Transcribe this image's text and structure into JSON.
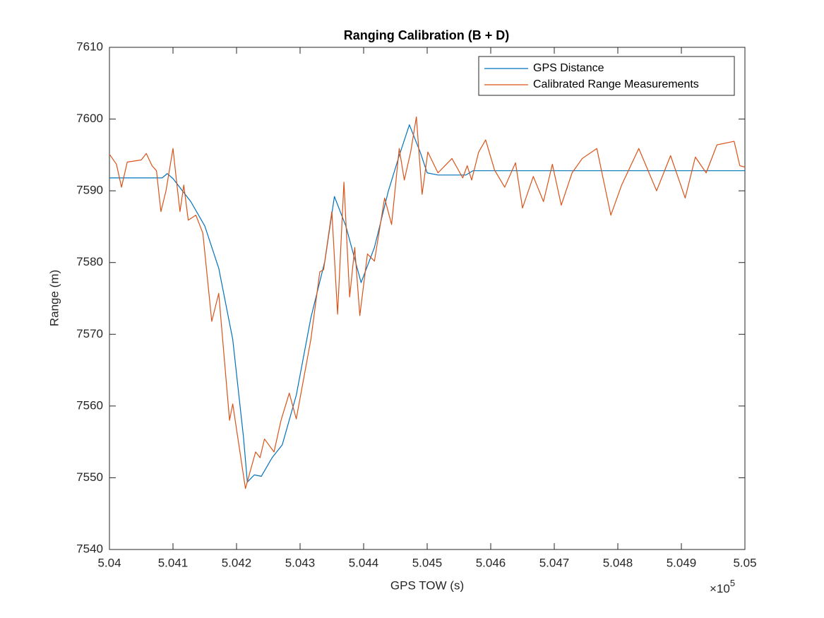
{
  "chart_data": {
    "type": "line",
    "title": "Ranging Calibration (B + D)",
    "xlabel": "GPS TOW (s)",
    "ylabel": "Range (m)",
    "x_multiplier": {
      "base": "×10",
      "exponent": "5"
    },
    "xlim": [
      504000,
      505000
    ],
    "ylim": [
      7540,
      7610
    ],
    "xticks": [
      {
        "value": 504000,
        "label": "5.04"
      },
      {
        "value": 504100,
        "label": "5.041"
      },
      {
        "value": 504200,
        "label": "5.042"
      },
      {
        "value": 504300,
        "label": "5.043"
      },
      {
        "value": 504400,
        "label": "5.044"
      },
      {
        "value": 504500,
        "label": "5.045"
      },
      {
        "value": 504600,
        "label": "5.046"
      },
      {
        "value": 504700,
        "label": "5.047"
      },
      {
        "value": 504800,
        "label": "5.048"
      },
      {
        "value": 504900,
        "label": "5.049"
      },
      {
        "value": 505000,
        "label": "5.05"
      }
    ],
    "yticks": [
      7540,
      7550,
      7560,
      7570,
      7580,
      7590,
      7600,
      7610
    ],
    "grid": false,
    "legend": "upper right",
    "series": [
      {
        "name": "GPS Distance",
        "color": "#0072bd",
        "x": [
          504000,
          504083,
          504091,
          504100,
          504128,
          504150,
          504172,
          504194,
          504211,
          504217,
          504228,
          504239,
          504256,
          504272,
          504294,
          504317,
          504339,
          504354,
          504372,
          504396,
          504417,
          504439,
          504456,
          504472,
          504489,
          504500,
          504517,
          504561,
          504572,
          505000
        ],
        "values": [
          7591.8,
          7591.8,
          7592.4,
          7591.7,
          7588.5,
          7585.1,
          7579.2,
          7569.3,
          7555.6,
          7549.4,
          7550.4,
          7550.2,
          7552.8,
          7554.6,
          7561.5,
          7572.3,
          7580.2,
          7589.2,
          7585.1,
          7577.2,
          7582.1,
          7590.0,
          7594.9,
          7599.2,
          7595.4,
          7592.5,
          7592.2,
          7592.2,
          7592.8,
          7592.8
        ]
      },
      {
        "name": "Calibrated Range Measurements",
        "color": "#d95319",
        "x": [
          504000,
          504011,
          504019,
          504028,
          504050,
          504058,
          504067,
          504074,
          504081,
          504089,
          504100,
          504106,
          504111,
          504117,
          504124,
          504136,
          504147,
          504161,
          504172,
          504189,
          504194,
          504214,
          504230,
          504237,
          504244,
          504259,
          504270,
          504283,
          504294,
          504317,
          504331,
          504337,
          504350,
          504359,
          504369,
          504378,
          504386,
          504394,
          504406,
          504417,
          504433,
          504444,
          504456,
          504464,
          504474,
          504483,
          504492,
          504501,
          504517,
          504539,
          504556,
          504563,
          504570,
          504581,
          504592,
          504606,
          504622,
          504639,
          504650,
          504667,
          504683,
          504697,
          504711,
          504728,
          504744,
          504767,
          504789,
          504806,
          504833,
          504861,
          504883,
          504906,
          504922,
          504939,
          504956,
          504983,
          504992,
          505000
        ],
        "values": [
          7595.1,
          7593.7,
          7590.5,
          7594.0,
          7594.3,
          7595.2,
          7593.5,
          7592.8,
          7587.1,
          7590.0,
          7595.9,
          7591.0,
          7587.1,
          7590.8,
          7585.9,
          7586.6,
          7584.1,
          7571.8,
          7575.7,
          7558.0,
          7560.3,
          7548.5,
          7553.6,
          7552.8,
          7555.4,
          7553.6,
          7558.0,
          7561.8,
          7558.2,
          7569.3,
          7578.7,
          7579.0,
          7587.1,
          7572.8,
          7591.2,
          7575.2,
          7582.1,
          7572.6,
          7581.2,
          7580.2,
          7589.0,
          7585.3,
          7595.9,
          7591.5,
          7595.4,
          7600.3,
          7589.5,
          7595.4,
          7592.5,
          7594.5,
          7591.8,
          7593.5,
          7591.5,
          7595.4,
          7597.1,
          7592.9,
          7590.5,
          7593.9,
          7587.6,
          7592.0,
          7588.5,
          7593.7,
          7588.0,
          7592.5,
          7594.5,
          7595.9,
          7586.6,
          7590.8,
          7595.9,
          7590.0,
          7594.9,
          7589.0,
          7594.7,
          7592.5,
          7596.4,
          7596.9,
          7593.5,
          7593.3
        ]
      }
    ]
  }
}
